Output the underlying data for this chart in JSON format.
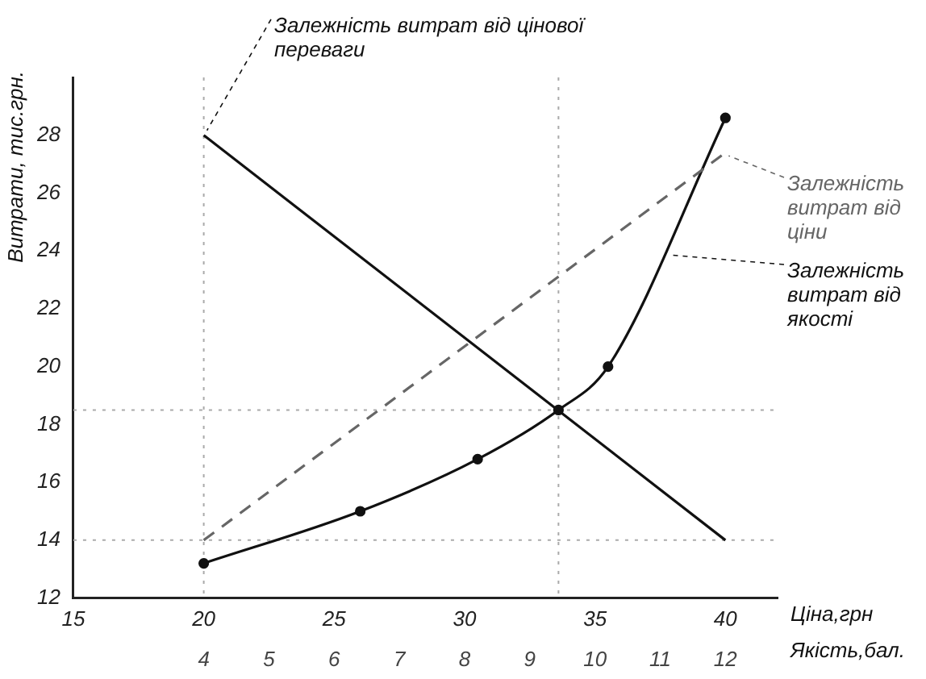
{
  "chart_data": {
    "type": "line",
    "ylabel": "Витрати, тис.грн.",
    "xlabel": "Ціна,грн",
    "x2label": "Якість,бал.",
    "xlim": [
      15,
      42
    ],
    "xticks": [
      15,
      20,
      25,
      30,
      35,
      40
    ],
    "x2lim": [
      2,
      12.8
    ],
    "x2ticks": [
      4,
      5,
      6,
      7,
      8,
      9,
      10,
      11,
      12
    ],
    "ylim": [
      12,
      30
    ],
    "yticks": [
      12,
      14,
      16,
      18,
      20,
      22,
      24,
      26,
      28
    ],
    "grid": false,
    "legend": false,
    "series": [
      {
        "name": "Залежність витрат від цінової переваги",
        "color": "#111111",
        "x": [
          20,
          40
        ],
        "values": [
          28,
          14
        ],
        "marker": "none",
        "line_style": "solid"
      },
      {
        "name": "Залежність витрат від ціни",
        "color": "#666666",
        "x": [
          20,
          40
        ],
        "values": [
          14,
          27.4
        ],
        "marker": "none",
        "line_style": "dashed"
      },
      {
        "name": "Залежність витрат від якості",
        "color": "#111111",
        "x": [
          20,
          26,
          30.5,
          33.6,
          35.5,
          40
        ],
        "values": [
          13.2,
          15.0,
          16.8,
          18.5,
          20.0,
          28.6
        ],
        "marker": "circle",
        "line_style": "solid"
      }
    ],
    "ref_lines": [
      {
        "axis": "x",
        "value": 20,
        "color": "#aaaaaa",
        "line_style": "dotted"
      },
      {
        "axis": "x",
        "value": 33.6,
        "color": "#aaaaaa",
        "line_style": "dotted"
      },
      {
        "axis": "y",
        "value": 14,
        "color": "#aaaaaa",
        "line_style": "dotted"
      },
      {
        "axis": "y",
        "value": 18.5,
        "color": "#aaaaaa",
        "line_style": "dotted"
      }
    ]
  }
}
